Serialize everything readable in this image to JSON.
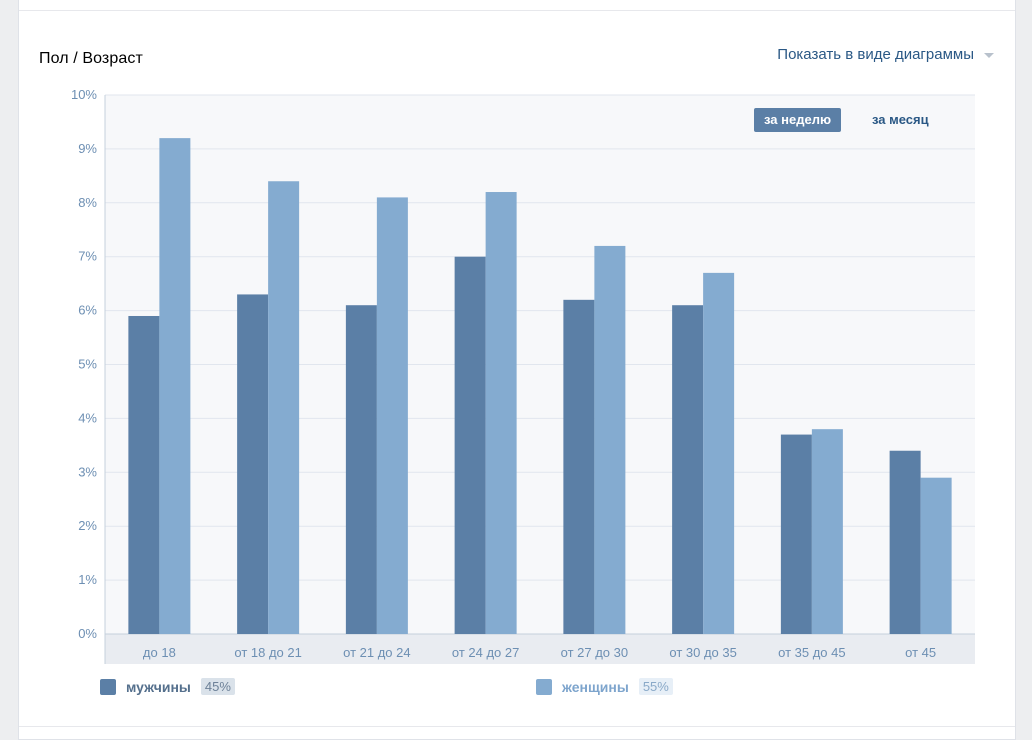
{
  "header": {
    "title": "Пол / Возраст",
    "view_toggle_label": "Показать в виде диаграммы"
  },
  "period": {
    "week_label": "за неделю",
    "month_label": "за месяц",
    "selected": "week"
  },
  "legend": {
    "men_label": "мужчины",
    "men_share": "45%",
    "women_label": "женщины",
    "women_share": "55%"
  },
  "colors": {
    "men": "#5b7fa6",
    "women": "#84abd0",
    "accent": "#2a5885",
    "plot_bg": "#f7f8fa",
    "grid": "#e1e6ee",
    "tick_text": "#6d8fb3"
  },
  "chart_data": {
    "type": "bar",
    "categories": [
      "до 18",
      "от 18 до 21",
      "от 21 до 24",
      "от 24 до 27",
      "от 27 до 30",
      "от 30 до 35",
      "от 35 до 45",
      "от 45"
    ],
    "series": [
      {
        "name": "мужчины",
        "values": [
          5.9,
          6.3,
          6.1,
          7.0,
          6.2,
          6.1,
          3.7,
          3.4
        ]
      },
      {
        "name": "женщины",
        "values": [
          9.2,
          8.4,
          8.1,
          8.2,
          7.2,
          6.7,
          3.8,
          2.9
        ]
      }
    ],
    "title": "Пол / Возраст",
    "xlabel": "",
    "ylabel": "",
    "ylim": [
      0,
      10
    ],
    "yticks": [
      "0%",
      "1%",
      "2%",
      "3%",
      "4%",
      "5%",
      "6%",
      "7%",
      "8%",
      "9%",
      "10%"
    ],
    "grid": true,
    "legend_position": "bottom"
  }
}
